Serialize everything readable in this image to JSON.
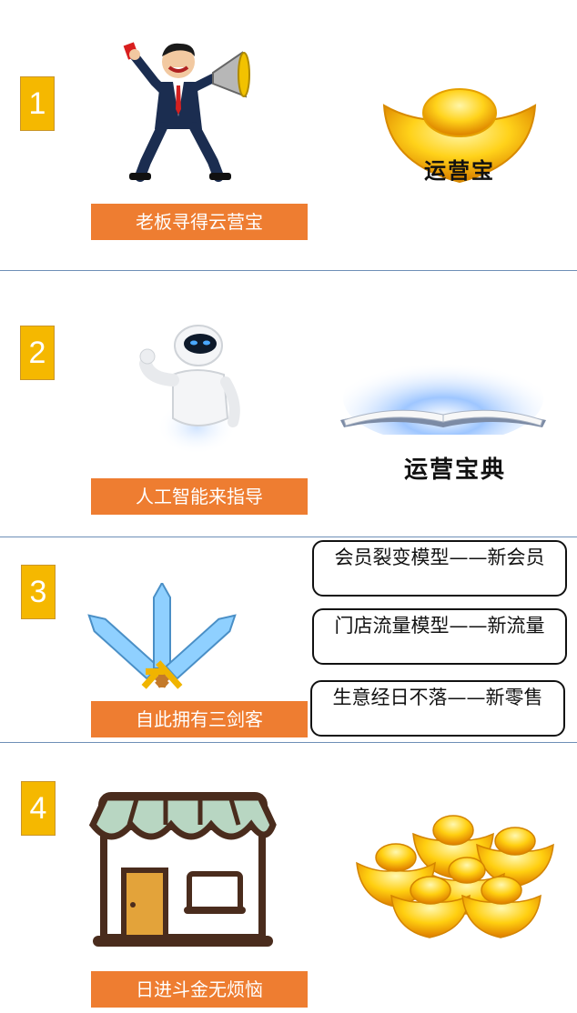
{
  "steps": [
    {
      "number": "1",
      "caption": "老板寻得云营宝",
      "ingot_label": "运营宝"
    },
    {
      "number": "2",
      "caption": "人工智能来指导",
      "book_label": "运营宝典"
    },
    {
      "number": "3",
      "caption": "自此拥有三剑客",
      "models": [
        {
          "text": "会员裂变模型——新会员"
        },
        {
          "text": "门店流量模型——新流量"
        },
        {
          "text": "生意经日不落——新零售"
        }
      ]
    },
    {
      "number": "4",
      "caption": "日进斗金无烦恼"
    }
  ],
  "colors": {
    "number_badge": "#f5b800",
    "caption_bg": "#ee7d31",
    "divider": "#6e8fb7"
  }
}
